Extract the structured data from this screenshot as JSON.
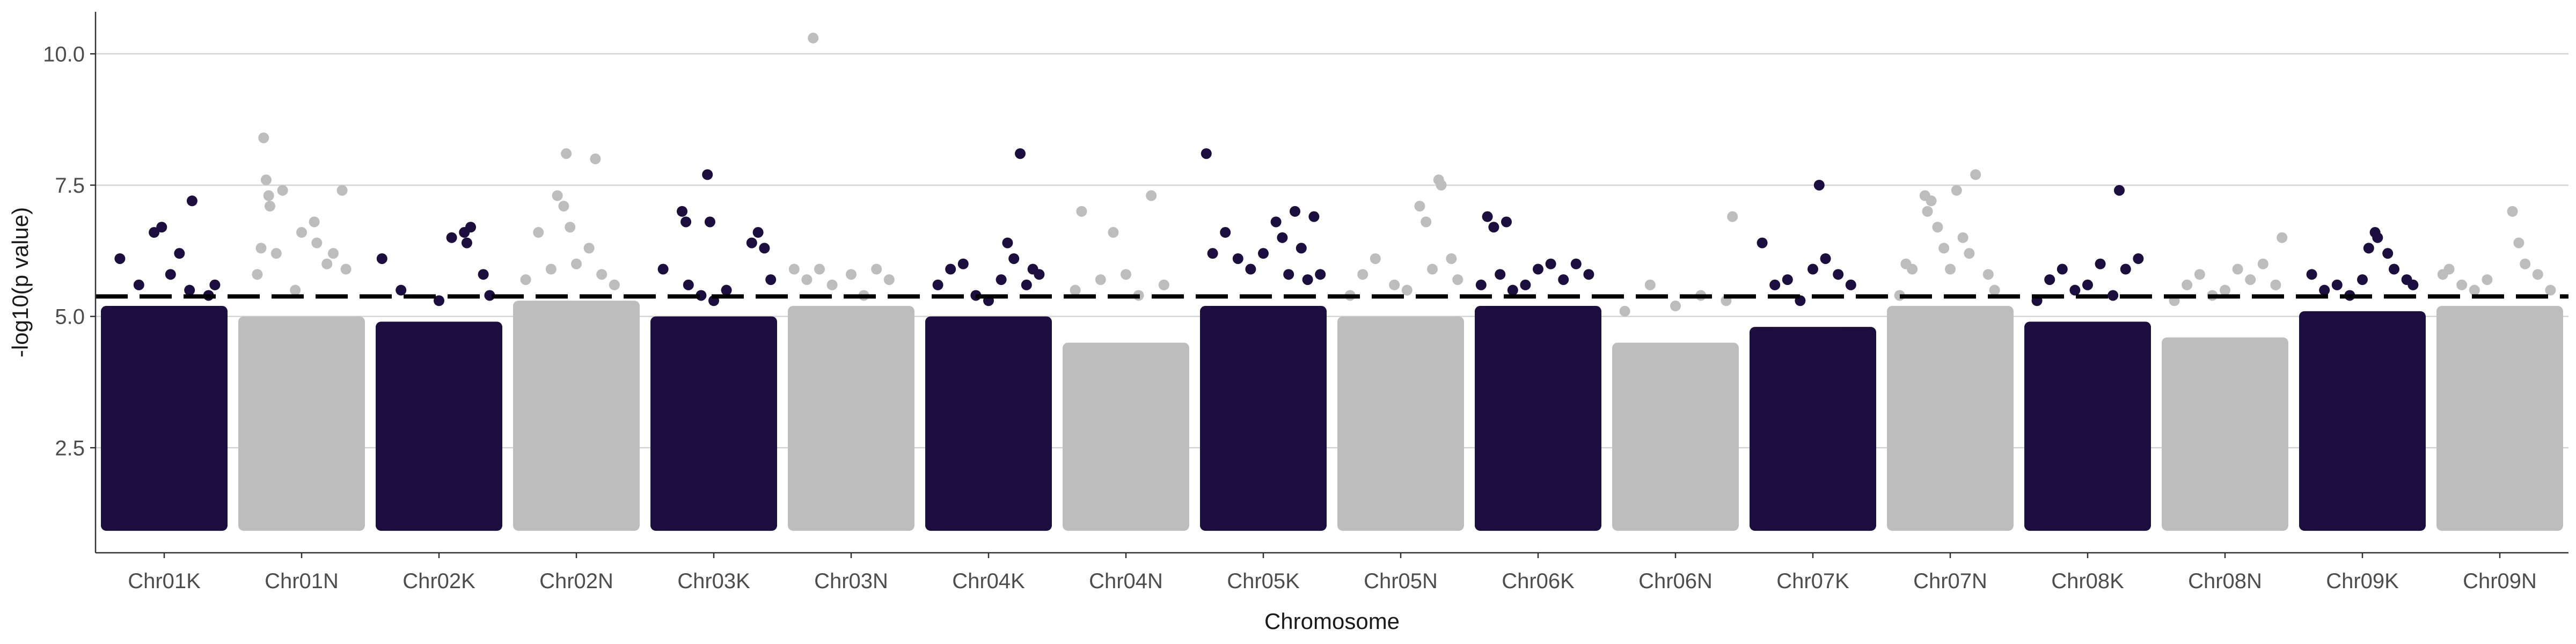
{
  "chart_data": {
    "type": "scatter",
    "title": "",
    "xlabel": "Chromosome",
    "ylabel": "-log10(p value)",
    "ylim": [
      0.5,
      10.8
    ],
    "yticks": [
      2.5,
      5.0,
      7.5,
      10.0
    ],
    "ytick_labels": [
      "2.5",
      "5.0",
      "7.5",
      "10.0"
    ],
    "grid": "horizontal major lines",
    "threshold": 5.38,
    "threshold_style": "dashed black line",
    "colors": {
      "dark": "#1c0f3f",
      "light": "#bdbdbd"
    },
    "min_plotted_value": 1.0,
    "categories": [
      "Chr01K",
      "Chr01N",
      "Chr02K",
      "Chr02N",
      "Chr03K",
      "Chr03N",
      "Chr04K",
      "Chr04N",
      "Chr05K",
      "Chr05N",
      "Chr06K",
      "Chr06N",
      "Chr07K",
      "Chr07N",
      "Chr08K",
      "Chr08N",
      "Chr09K",
      "Chr09N"
    ],
    "series": [
      {
        "category": "Chr01K",
        "color": "dark",
        "band_top": 5.2,
        "points": [
          [
            0.15,
            6.1
          ],
          [
            0.3,
            5.6
          ],
          [
            0.42,
            6.6
          ],
          [
            0.48,
            6.7
          ],
          [
            0.55,
            5.8
          ],
          [
            0.62,
            6.2
          ],
          [
            0.7,
            5.5
          ],
          [
            0.72,
            7.2
          ],
          [
            0.85,
            5.4
          ],
          [
            0.9,
            5.6
          ]
        ]
      },
      {
        "category": "Chr01N",
        "color": "light",
        "band_top": 5.0,
        "points": [
          [
            0.15,
            5.8
          ],
          [
            0.18,
            6.3
          ],
          [
            0.2,
            8.4
          ],
          [
            0.22,
            7.6
          ],
          [
            0.24,
            7.3
          ],
          [
            0.25,
            7.1
          ],
          [
            0.3,
            6.2
          ],
          [
            0.35,
            7.4
          ],
          [
            0.45,
            5.5
          ],
          [
            0.5,
            6.6
          ],
          [
            0.6,
            6.8
          ],
          [
            0.62,
            6.4
          ],
          [
            0.7,
            6.0
          ],
          [
            0.75,
            6.2
          ],
          [
            0.82,
            7.4
          ],
          [
            0.85,
            5.9
          ]
        ]
      },
      {
        "category": "Chr02K",
        "color": "dark",
        "band_top": 4.9,
        "points": [
          [
            0.05,
            6.1
          ],
          [
            0.2,
            5.5
          ],
          [
            0.5,
            5.3
          ],
          [
            0.6,
            6.5
          ],
          [
            0.7,
            6.6
          ],
          [
            0.72,
            6.4
          ],
          [
            0.75,
            6.7
          ],
          [
            0.85,
            5.8
          ],
          [
            0.9,
            5.4
          ]
        ]
      },
      {
        "category": "Chr02N",
        "color": "light",
        "band_top": 5.3,
        "points": [
          [
            0.1,
            5.7
          ],
          [
            0.2,
            6.6
          ],
          [
            0.3,
            5.9
          ],
          [
            0.35,
            7.3
          ],
          [
            0.4,
            7.1
          ],
          [
            0.42,
            8.1
          ],
          [
            0.45,
            6.7
          ],
          [
            0.5,
            6.0
          ],
          [
            0.6,
            6.3
          ],
          [
            0.65,
            8.0
          ],
          [
            0.7,
            5.8
          ],
          [
            0.8,
            5.6
          ]
        ]
      },
      {
        "category": "Chr03K",
        "color": "dark",
        "band_top": 5.0,
        "points": [
          [
            0.1,
            5.9
          ],
          [
            0.25,
            7.0
          ],
          [
            0.28,
            6.8
          ],
          [
            0.3,
            5.6
          ],
          [
            0.4,
            5.4
          ],
          [
            0.45,
            7.7
          ],
          [
            0.47,
            6.8
          ],
          [
            0.5,
            5.3
          ],
          [
            0.6,
            5.5
          ],
          [
            0.8,
            6.4
          ],
          [
            0.85,
            6.6
          ],
          [
            0.9,
            6.3
          ],
          [
            0.95,
            5.7
          ]
        ]
      },
      {
        "category": "Chr03N",
        "color": "light",
        "band_top": 5.2,
        "points": [
          [
            0.05,
            5.9
          ],
          [
            0.15,
            5.7
          ],
          [
            0.2,
            10.3
          ],
          [
            0.25,
            5.9
          ],
          [
            0.35,
            5.6
          ],
          [
            0.5,
            5.8
          ],
          [
            0.6,
            5.4
          ],
          [
            0.7,
            5.9
          ],
          [
            0.8,
            5.7
          ]
        ]
      },
      {
        "category": "Chr04K",
        "color": "dark",
        "band_top": 5.0,
        "points": [
          [
            0.1,
            5.6
          ],
          [
            0.2,
            5.9
          ],
          [
            0.3,
            6.0
          ],
          [
            0.4,
            5.4
          ],
          [
            0.5,
            5.3
          ],
          [
            0.6,
            5.7
          ],
          [
            0.65,
            6.4
          ],
          [
            0.7,
            6.1
          ],
          [
            0.75,
            8.1
          ],
          [
            0.8,
            5.6
          ],
          [
            0.85,
            5.9
          ],
          [
            0.9,
            5.8
          ]
        ]
      },
      {
        "category": "Chr04N",
        "color": "light",
        "band_top": 4.5,
        "points": [
          [
            0.1,
            5.5
          ],
          [
            0.15,
            7.0
          ],
          [
            0.3,
            5.7
          ],
          [
            0.4,
            6.6
          ],
          [
            0.5,
            5.8
          ],
          [
            0.6,
            5.4
          ],
          [
            0.7,
            7.3
          ],
          [
            0.8,
            5.6
          ]
        ]
      },
      {
        "category": "Chr05K",
        "color": "dark",
        "band_top": 5.2,
        "points": [
          [
            0.05,
            8.1
          ],
          [
            0.1,
            6.2
          ],
          [
            0.2,
            6.6
          ],
          [
            0.3,
            6.1
          ],
          [
            0.4,
            5.9
          ],
          [
            0.5,
            6.2
          ],
          [
            0.6,
            6.8
          ],
          [
            0.65,
            6.5
          ],
          [
            0.7,
            5.8
          ],
          [
            0.75,
            7.0
          ],
          [
            0.8,
            6.3
          ],
          [
            0.85,
            5.7
          ],
          [
            0.9,
            6.9
          ],
          [
            0.95,
            5.8
          ]
        ]
      },
      {
        "category": "Chr05N",
        "color": "light",
        "band_top": 5.0,
        "points": [
          [
            0.1,
            5.4
          ],
          [
            0.2,
            5.8
          ],
          [
            0.3,
            6.1
          ],
          [
            0.45,
            5.6
          ],
          [
            0.55,
            5.5
          ],
          [
            0.65,
            7.1
          ],
          [
            0.7,
            6.8
          ],
          [
            0.75,
            5.9
          ],
          [
            0.8,
            7.6
          ],
          [
            0.82,
            7.5
          ],
          [
            0.9,
            6.1
          ],
          [
            0.95,
            5.7
          ]
        ]
      },
      {
        "category": "Chr06K",
        "color": "dark",
        "band_top": 5.2,
        "points": [
          [
            0.05,
            5.6
          ],
          [
            0.1,
            6.9
          ],
          [
            0.15,
            6.7
          ],
          [
            0.2,
            5.8
          ],
          [
            0.25,
            6.8
          ],
          [
            0.3,
            5.5
          ],
          [
            0.4,
            5.6
          ],
          [
            0.5,
            5.9
          ],
          [
            0.6,
            6.0
          ],
          [
            0.7,
            5.7
          ],
          [
            0.8,
            6.0
          ],
          [
            0.9,
            5.8
          ]
        ]
      },
      {
        "category": "Chr06N",
        "color": "light",
        "band_top": 4.5,
        "points": [
          [
            0.1,
            5.1
          ],
          [
            0.3,
            5.6
          ],
          [
            0.5,
            5.2
          ],
          [
            0.7,
            5.4
          ],
          [
            0.9,
            5.3
          ],
          [
            0.95,
            6.9
          ]
        ]
      },
      {
        "category": "Chr07K",
        "color": "dark",
        "band_top": 4.8,
        "points": [
          [
            0.1,
            6.4
          ],
          [
            0.2,
            5.6
          ],
          [
            0.3,
            5.7
          ],
          [
            0.4,
            5.3
          ],
          [
            0.5,
            5.9
          ],
          [
            0.55,
            7.5
          ],
          [
            0.6,
            6.1
          ],
          [
            0.7,
            5.8
          ],
          [
            0.8,
            5.6
          ]
        ]
      },
      {
        "category": "Chr07N",
        "color": "light",
        "band_top": 5.2,
        "points": [
          [
            0.1,
            5.4
          ],
          [
            0.15,
            6.0
          ],
          [
            0.2,
            5.9
          ],
          [
            0.3,
            7.3
          ],
          [
            0.32,
            7.0
          ],
          [
            0.35,
            7.2
          ],
          [
            0.4,
            6.7
          ],
          [
            0.45,
            6.3
          ],
          [
            0.5,
            5.9
          ],
          [
            0.55,
            7.4
          ],
          [
            0.6,
            6.5
          ],
          [
            0.65,
            6.2
          ],
          [
            0.7,
            7.7
          ],
          [
            0.8,
            5.8
          ],
          [
            0.85,
            5.5
          ]
        ]
      },
      {
        "category": "Chr08K",
        "color": "dark",
        "band_top": 4.9,
        "points": [
          [
            0.1,
            5.3
          ],
          [
            0.2,
            5.7
          ],
          [
            0.3,
            5.9
          ],
          [
            0.4,
            5.5
          ],
          [
            0.5,
            5.6
          ],
          [
            0.6,
            6.0
          ],
          [
            0.7,
            5.4
          ],
          [
            0.75,
            7.4
          ],
          [
            0.8,
            5.9
          ],
          [
            0.9,
            6.1
          ]
        ]
      },
      {
        "category": "Chr08N",
        "color": "light",
        "band_top": 4.6,
        "points": [
          [
            0.1,
            5.3
          ],
          [
            0.2,
            5.6
          ],
          [
            0.3,
            5.8
          ],
          [
            0.4,
            5.4
          ],
          [
            0.5,
            5.5
          ],
          [
            0.6,
            5.9
          ],
          [
            0.7,
            5.7
          ],
          [
            0.8,
            6.0
          ],
          [
            0.9,
            5.6
          ],
          [
            0.95,
            6.5
          ]
        ]
      },
      {
        "category": "Chr09K",
        "color": "dark",
        "band_top": 5.1,
        "points": [
          [
            0.1,
            5.8
          ],
          [
            0.2,
            5.5
          ],
          [
            0.3,
            5.6
          ],
          [
            0.4,
            5.4
          ],
          [
            0.5,
            5.7
          ],
          [
            0.55,
            6.3
          ],
          [
            0.6,
            6.6
          ],
          [
            0.62,
            6.5
          ],
          [
            0.7,
            6.2
          ],
          [
            0.75,
            5.9
          ],
          [
            0.85,
            5.7
          ],
          [
            0.9,
            5.6
          ]
        ]
      },
      {
        "category": "Chr09N",
        "color": "light",
        "band_top": 5.2,
        "points": [
          [
            0.05,
            5.8
          ],
          [
            0.1,
            5.9
          ],
          [
            0.2,
            5.6
          ],
          [
            0.3,
            5.5
          ],
          [
            0.4,
            5.7
          ],
          [
            0.6,
            7.0
          ],
          [
            0.65,
            6.4
          ],
          [
            0.7,
            6.0
          ],
          [
            0.8,
            5.8
          ],
          [
            0.9,
            5.5
          ]
        ]
      }
    ]
  }
}
